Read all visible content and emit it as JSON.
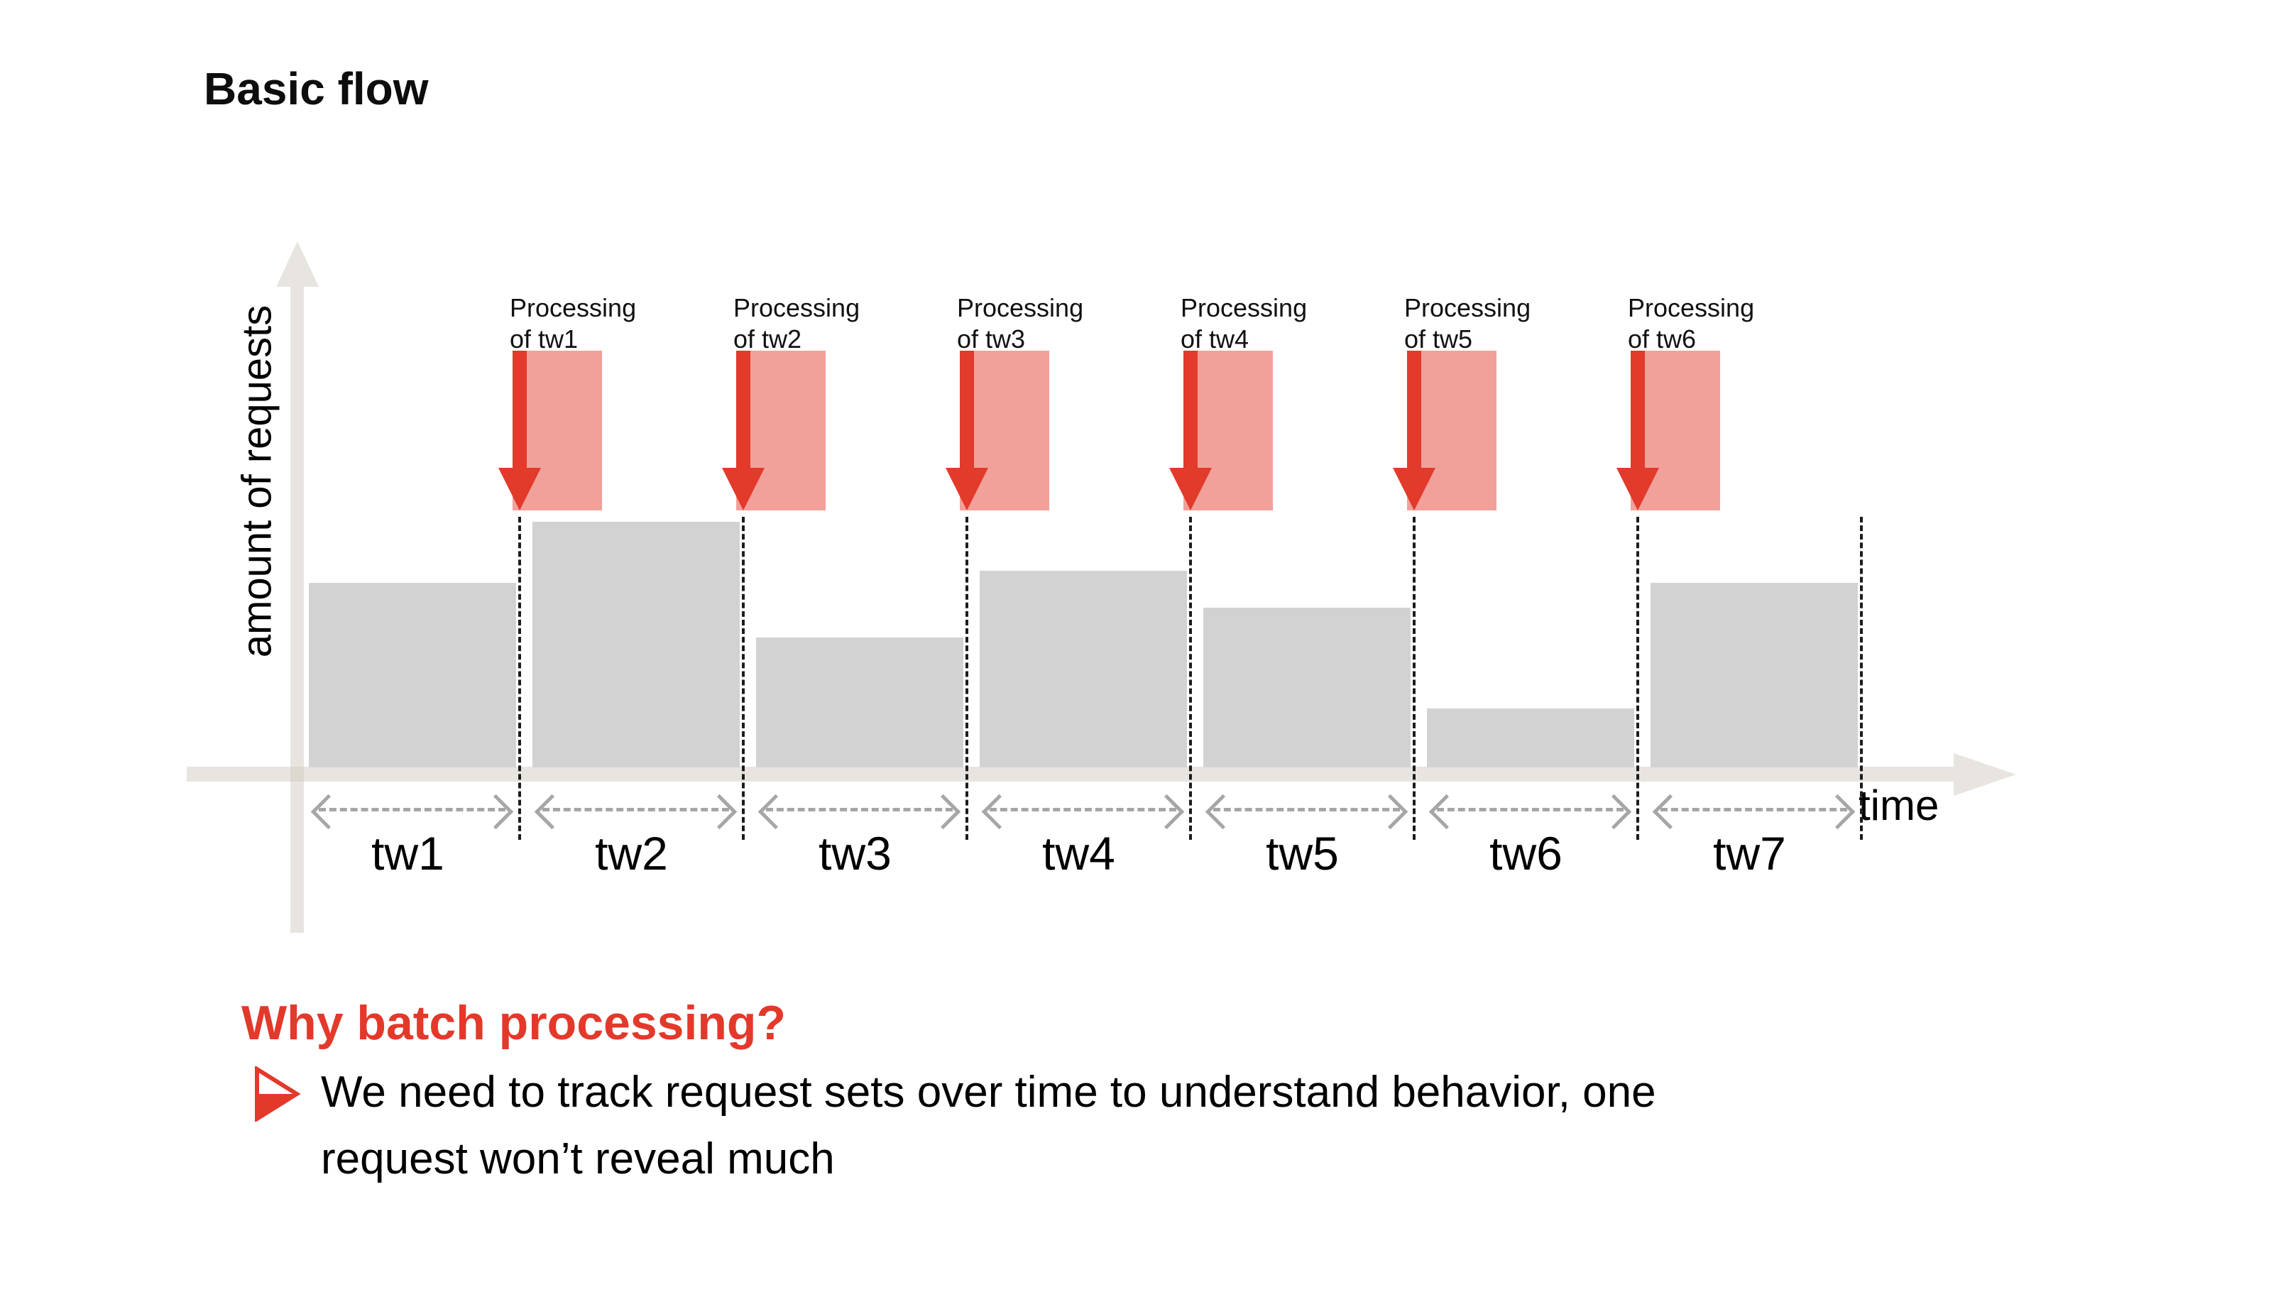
{
  "slide": {
    "title": "Basic flow",
    "section_heading": "Why batch processing?",
    "accent_color": "#e3392b",
    "bullet": {
      "marker_icon": "red-arrow-bullet",
      "line1": "We need to track request sets over time to understand behavior, one",
      "line2": "request won’t reveal much"
    }
  },
  "chart_data": {
    "type": "bar",
    "title": "",
    "xlabel": "time",
    "ylabel": "amount of requests",
    "categories": [
      "tw1",
      "tw2",
      "tw3",
      "tw4",
      "tw5",
      "tw6",
      "tw7"
    ],
    "values": [
      0.75,
      1.0,
      0.53,
      0.8,
      0.65,
      0.24,
      0.75
    ],
    "ylim": [
      0,
      1.1
    ],
    "grid": false,
    "axis_ticks": "none",
    "bar_color": "#d2d2d2",
    "axis_color": "#e8e5e0",
    "window_divider_style": "black-dashed",
    "window_span_arrow_color": "#a6a6a6",
    "processing_arrow_color": "#e23a2b",
    "processing_fill_color": "#f2a09a",
    "processing_annotations": [
      {
        "line1": "Processing",
        "line2": "of tw1"
      },
      {
        "line1": "Processing",
        "line2": "of tw2"
      },
      {
        "line1": "Processing",
        "line2": "of tw3"
      },
      {
        "line1": "Processing",
        "line2": "of tw4"
      },
      {
        "line1": "Processing",
        "line2": "of tw5"
      },
      {
        "line1": "Processing",
        "line2": "of tw6"
      }
    ]
  }
}
